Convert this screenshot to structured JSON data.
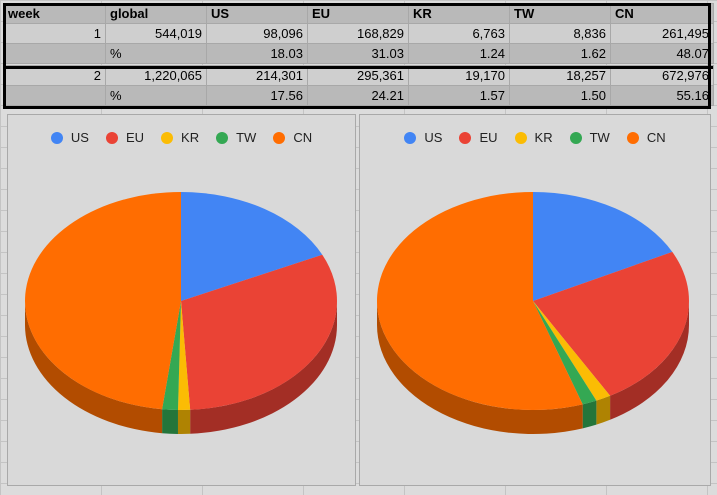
{
  "table": {
    "headers": [
      "week",
      "global",
      "US",
      "EU",
      "KR",
      "TW",
      "CN"
    ],
    "weeks": [
      {
        "week": "1",
        "global": "544,019",
        "values": [
          "98,096",
          "168,829",
          "6,763",
          "8,836",
          "261,495"
        ],
        "pct_label": "%",
        "pcts": [
          "18.03",
          "31.03",
          "1.24",
          "1.62",
          "48.07"
        ]
      },
      {
        "week": "2",
        "global": "1,220,065",
        "values": [
          "214,301",
          "295,361",
          "19,170",
          "18,257",
          "672,976"
        ],
        "pct_label": "%",
        "pcts": [
          "17.56",
          "24.21",
          "1.57",
          "1.50",
          "55.16"
        ]
      }
    ]
  },
  "chart_data": [
    {
      "type": "pie",
      "style": "3d",
      "legend_position": "top",
      "categories": [
        "US",
        "EU",
        "KR",
        "TW",
        "CN"
      ],
      "values": [
        98096,
        168829,
        6763,
        8836,
        261495
      ],
      "colors": [
        "#4285f4",
        "#ea4335",
        "#fbbc04",
        "#34a853",
        "#ff6d01"
      ]
    },
    {
      "type": "pie",
      "style": "3d",
      "legend_position": "top",
      "categories": [
        "US",
        "EU",
        "KR",
        "TW",
        "CN"
      ],
      "values": [
        214301,
        295361,
        19170,
        18257,
        672976
      ],
      "colors": [
        "#4285f4",
        "#ea4335",
        "#fbbc04",
        "#34a853",
        "#ff6d01"
      ]
    }
  ]
}
